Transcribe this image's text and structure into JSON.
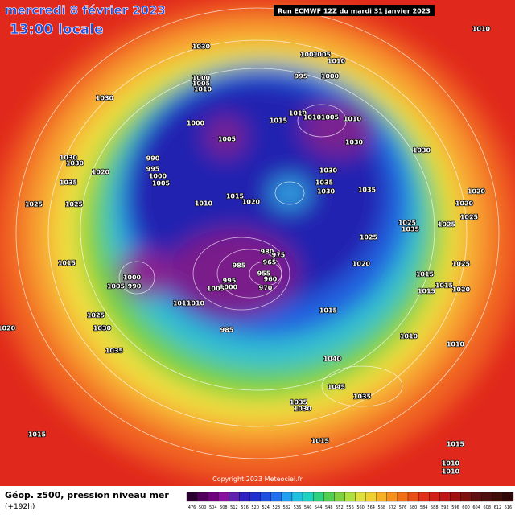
{
  "header": {
    "title": "mercredi 8 février 2023",
    "subtitle": "13:00 locale",
    "run": "Run ECMWF 12Z du mardi 31 janvier 2023"
  },
  "footer": {
    "field": "Géop. z500, pression niveau mer",
    "lead": "(+192h)",
    "copyright": "Copyright 2023 Meteociel.fr",
    "scale": [
      "476",
      "500",
      "504",
      "508",
      "512",
      "516",
      "520",
      "524",
      "528",
      "532",
      "536",
      "540",
      "544",
      "548",
      "552",
      "556",
      "560",
      "564",
      "568",
      "572",
      "576",
      "580",
      "584",
      "588",
      "592",
      "596",
      "600",
      "604",
      "608",
      "612",
      "616"
    ]
  },
  "map": {
    "pressure_labels": [
      "1030",
      "1000",
      "1005",
      "1010",
      "995",
      "1000",
      "1000",
      "1005",
      "1010",
      "1030",
      "1010",
      "1015",
      "1010",
      "1005",
      "1010",
      "1000",
      "1005",
      "1030",
      "1030",
      "990",
      "1030",
      "1030",
      "995",
      "1020",
      "1000",
      "1005",
      "1030",
      "1035",
      "1035",
      "1035",
      "1030",
      "1015",
      "1020",
      "1010",
      "1020",
      "1020",
      "1025",
      "1025",
      "1025",
      "1025",
      "1035",
      "1025",
      "1025",
      "980",
      "975",
      "965",
      "985",
      "955",
      "960",
      "970",
      "1020",
      "1025",
      "1015",
      "1000",
      "990",
      "1005",
      "995",
      "1000",
      "1005",
      "1015",
      "1015",
      "1020",
      "1015",
      "1010",
      "1010",
      "1015",
      "1025",
      "1030",
      "1020",
      "985",
      "1010",
      "1010",
      "1035",
      "1040",
      "1045",
      "1035",
      "1035",
      "1030",
      "1015",
      "1015",
      "1015",
      "1010",
      "1010",
      "1010"
    ]
  }
}
